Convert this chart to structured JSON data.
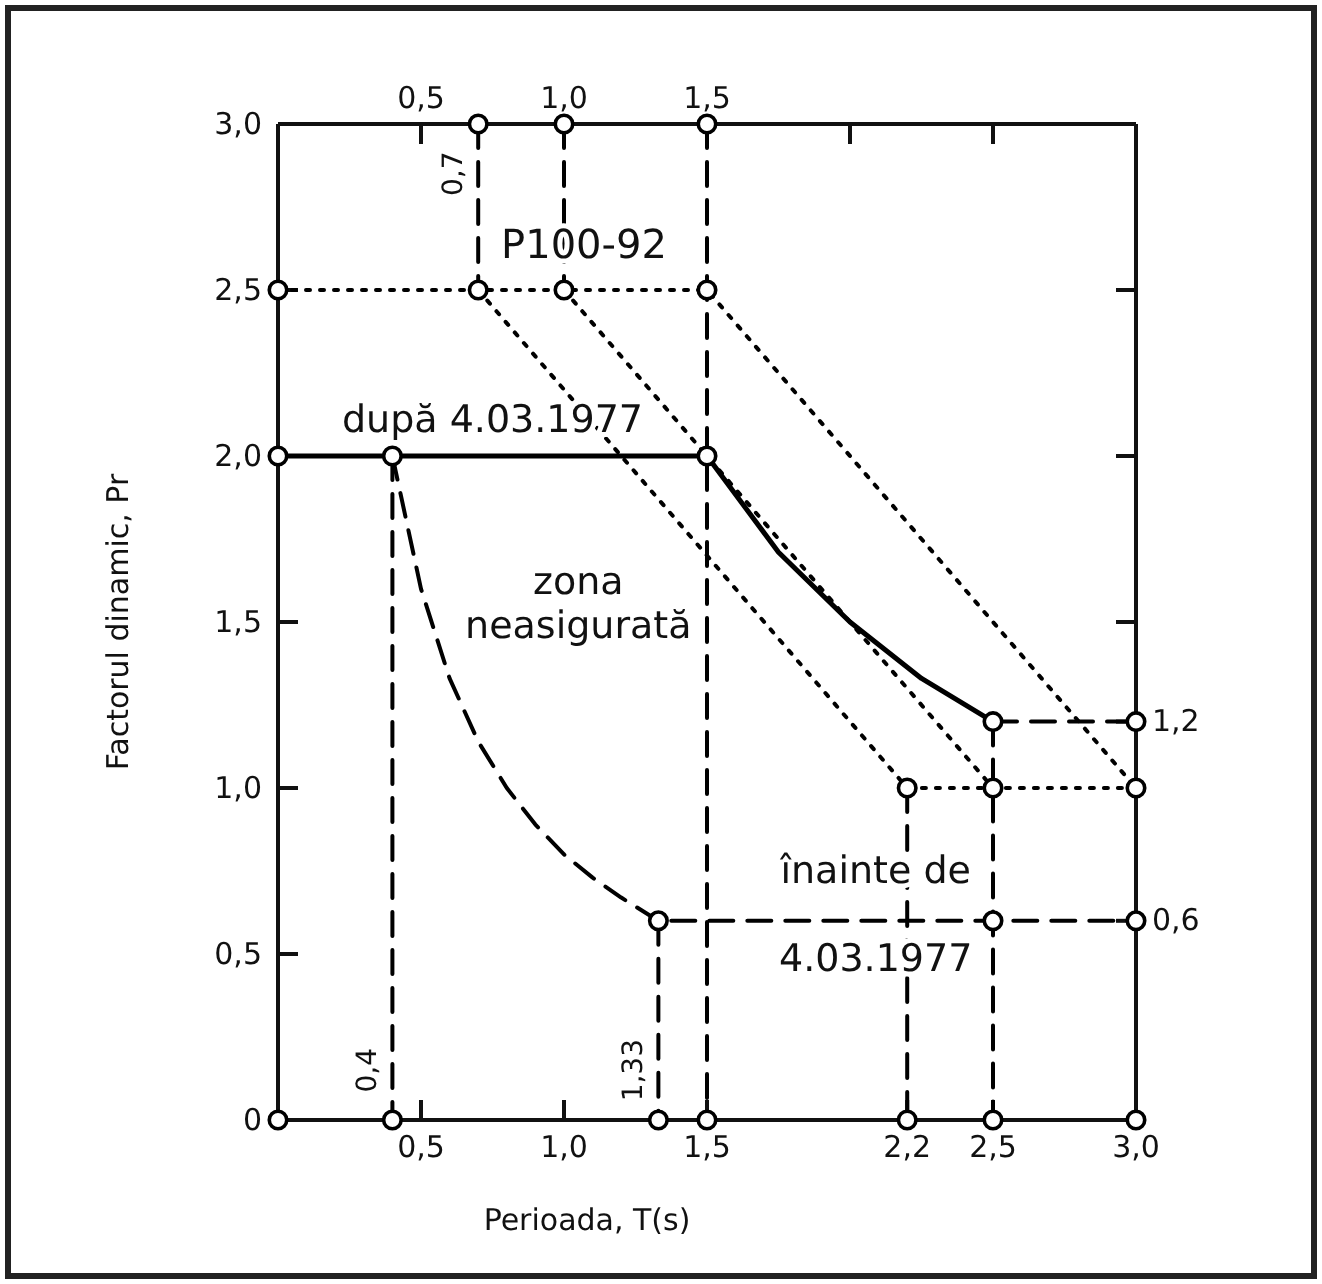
{
  "chart_data": {
    "type": "line",
    "xlabel": "Perioada, T(s)",
    "ylabel": "Factorul dinamic, Pr",
    "xlim": [
      0,
      3
    ],
    "xticks": [
      {
        "value": 0.5,
        "label": "0,5"
      },
      {
        "value": 1,
        "label": "1,0"
      },
      {
        "value": 1.5,
        "label": "1,5"
      },
      {
        "value": 2.2,
        "label": "2,2"
      },
      {
        "value": 2.5,
        "label": "2,5"
      },
      {
        "value": 3,
        "label": "3,0"
      }
    ],
    "x2lim": [
      0,
      3
    ],
    "x2ticks": [
      {
        "value": 0.5,
        "label": "0,5"
      },
      {
        "value": 1,
        "label": "1,0"
      },
      {
        "value": 1.5,
        "label": "1,5"
      },
      {
        "value": 2,
        "label": null
      },
      {
        "value": 2.5,
        "label": null
      }
    ],
    "ylim": [
      0,
      3
    ],
    "yticks": [
      0,
      {
        "value": 0.5,
        "label": "0,5"
      },
      {
        "value": 1,
        "label": "1,0"
      },
      {
        "value": 1.5,
        "label": "1,5"
      },
      {
        "value": 2,
        "label": "2,0"
      },
      {
        "value": 2.5,
        "label": "2,5"
      },
      {
        "value": 3,
        "label": "3,0"
      }
    ],
    "y2lim": [
      0,
      3
    ],
    "y2ticks": [
      {
        "value": 0.6,
        "label": "0,6"
      },
      {
        "value": 1.2,
        "label": "1,2"
      },
      {
        "value": 1.5,
        "label": null
      },
      {
        "value": 2,
        "label": null
      },
      {
        "value": 2.5,
        "label": null
      }
    ],
    "grid": false,
    "series": [
      {
        "line_style": "solid",
        "color": "#000000",
        "x": [
          0,
          0.4,
          1.5,
          1.75,
          2,
          2.25,
          2.5
        ],
        "values": [
          2,
          2,
          2,
          1.71,
          1.5,
          1.33,
          1.2
        ]
      },
      {
        "type": "line",
        "line_style": "dashed",
        "color": "#000000",
        "x": [
          2.5,
          3
        ],
        "values": [
          1.2,
          1.2
        ]
      },
      {
        "type": "line",
        "line_style": "dashed",
        "color": "#000000",
        "x": [
          0.4,
          0.5,
          0.6,
          0.7,
          0.8,
          0.9,
          1,
          1.1,
          1.2,
          1.33,
          3
        ],
        "values": [
          2,
          1.6,
          1.33,
          1.14,
          1,
          0.89,
          0.8,
          0.73,
          0.67,
          0.6,
          0.6
        ]
      },
      {
        "type": "line",
        "line_style": "dotted",
        "color": "#000000",
        "x": [
          0,
          1.5,
          3
        ],
        "values": [
          2.5,
          2.5,
          1
        ]
      },
      {
        "type": "line",
        "line_style": "dotted",
        "color": "#000000",
        "x": [
          0.7,
          2.2,
          3
        ],
        "values": [
          2.5,
          1,
          1
        ]
      },
      {
        "type": "line",
        "line_style": "dotted",
        "color": "#000000",
        "x": [
          1,
          2.5
        ],
        "values": [
          2.5,
          1
        ]
      },
      {
        "type": "line",
        "line_style": "dashed",
        "color": "#000000",
        "x": [
          0.4,
          0.4
        ],
        "values": [
          2,
          0
        ]
      },
      {
        "type": "line",
        "line_style": "dashed",
        "color": "#000000",
        "x": [
          0.7,
          0.7
        ],
        "values": [
          3,
          2.5
        ]
      },
      {
        "type": "line",
        "line_style": "dashed",
        "color": "#000000",
        "x": [
          1,
          1
        ],
        "values": [
          3,
          2.5
        ]
      },
      {
        "type": "line",
        "line_style": "dashed",
        "color": "#000000",
        "x": [
          1.5,
          1.5
        ],
        "values": [
          3,
          0
        ]
      },
      {
        "type": "line",
        "line_style": "dashed",
        "color": "#000000",
        "x": [
          1.33,
          1.33
        ],
        "values": [
          0.6,
          0
        ]
      },
      {
        "type": "line",
        "line_style": "dashed",
        "color": "#000000",
        "x": [
          2.2,
          2.2
        ],
        "values": [
          1,
          0
        ]
      },
      {
        "type": "line",
        "line_style": "dashed",
        "color": "#000000",
        "x": [
          2.5,
          2.5
        ],
        "values": [
          1.2,
          0
        ]
      },
      {
        "type": "scatter",
        "marker": "circle",
        "color": "#000000",
        "x": [
          0,
          0.4,
          1.5,
          2.5,
          3,
          1.33,
          2.5,
          3,
          0,
          0.7,
          1,
          1.5,
          2.2,
          2.5,
          3,
          0.7,
          1,
          1.5,
          0,
          0.4,
          1.33,
          1.5,
          2.2,
          2.5,
          3
        ],
        "values": [
          2,
          2,
          2,
          1.2,
          1.2,
          0.6,
          0.6,
          0.6,
          2.5,
          2.5,
          2.5,
          2.5,
          1,
          1,
          1,
          3,
          3,
          3,
          0,
          0,
          0,
          0,
          0,
          0,
          0
        ]
      }
    ],
    "annotations": [
      {
        "text": "0,7",
        "x": 0.7,
        "y": 2.85
      },
      {
        "text": "0,4",
        "x": 0.4,
        "y": 0.15
      },
      {
        "text": "1,33",
        "x": 1.33,
        "y": 0.15
      },
      {
        "text": "P100-92",
        "x": 1,
        "y": 2.5
      },
      {
        "text": "după 4.03.1977",
        "x": 0.75,
        "y": 2
      },
      "zona neasigurată",
      {
        "text": "înainte de 4.03.1977",
        "x": 1.95,
        "y": 0.6
      }
    ]
  }
}
